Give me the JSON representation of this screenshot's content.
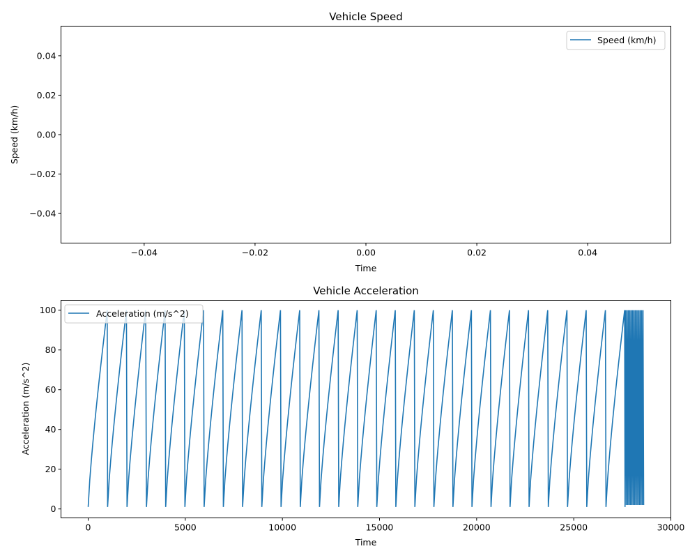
{
  "chart_data": [
    {
      "type": "line",
      "title": "Vehicle Speed",
      "xlabel": "Time",
      "ylabel": "Speed (km/h)",
      "xlim": [
        -0.055,
        0.055
      ],
      "ylim": [
        -0.055,
        0.055
      ],
      "xticks": [
        -0.04,
        -0.02,
        0.0,
        0.02,
        0.04
      ],
      "xtick_labels": [
        "−0.04",
        "−0.02",
        "0.00",
        "0.02",
        "0.04"
      ],
      "yticks": [
        -0.04,
        -0.02,
        0.0,
        0.02,
        0.04
      ],
      "ytick_labels": [
        "−0.04",
        "−0.02",
        "0.00",
        "0.02",
        "0.04"
      ],
      "grid": false,
      "legend": "top-right",
      "series": [
        {
          "name": "Speed (km/h)",
          "color": "#1f77b4",
          "x": [],
          "y": []
        }
      ]
    },
    {
      "type": "line",
      "title": "Vehicle Acceleration",
      "xlabel": "Time",
      "ylabel": "Acceleration (m/s^2)",
      "xlim": [
        -1400,
        30000
      ],
      "ylim": [
        -4.5,
        105
      ],
      "xticks": [
        0,
        5000,
        10000,
        15000,
        20000,
        25000,
        30000
      ],
      "xtick_labels": [
        "0",
        "5000",
        "10000",
        "15000",
        "20000",
        "25000",
        "30000"
      ],
      "yticks": [
        0,
        20,
        40,
        60,
        80,
        100
      ],
      "ytick_labels": [
        "0",
        "20",
        "40",
        "60",
        "80",
        "100"
      ],
      "grid": false,
      "legend": "top-left",
      "series": [
        {
          "name": "Acceleration (m/s^2)",
          "color": "#1f77b4",
          "pattern": "sawtooth",
          "low": 1,
          "high": 100,
          "ramp_starts": [
            0,
            1000,
            2000,
            3000,
            3990,
            4980,
            5970,
            6960,
            7950,
            8940,
            9930,
            10920,
            11910,
            12900,
            13880,
            14860,
            15840,
            16820,
            17800,
            18780,
            19760,
            20740,
            21720,
            22700,
            23690,
            24680,
            25670,
            26660,
            27640
          ],
          "ramp_ends": [
            980,
            1970,
            2960,
            3960,
            4950,
            5940,
            6930,
            7920,
            8910,
            9900,
            10890,
            11880,
            12870,
            13850,
            14830,
            15810,
            16790,
            17770,
            18750,
            19730,
            20710,
            21690,
            22670,
            23660,
            24650,
            25640,
            26630,
            27620,
            27650
          ],
          "dense_segment": {
            "x_start": 27650,
            "x_end": 28600,
            "low": 2,
            "high": 100,
            "oscillations": 14
          }
        }
      ]
    }
  ]
}
